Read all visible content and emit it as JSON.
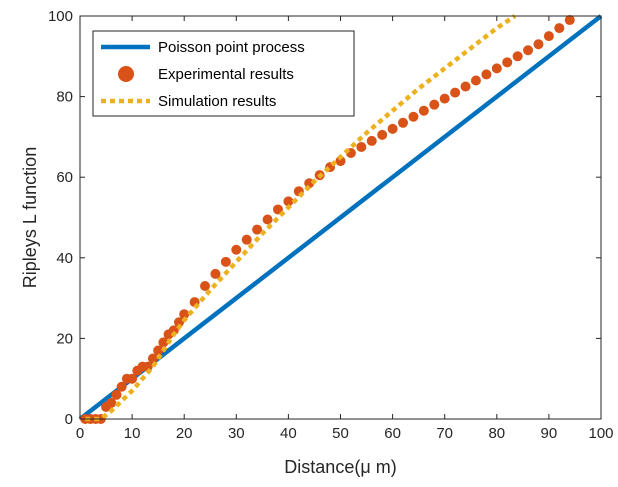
{
  "chart_data": {
    "type": "line",
    "xlabel": "Distance(μ m)",
    "ylabel": "Ripleys L function",
    "xlim": [
      0,
      100
    ],
    "ylim": [
      0,
      100
    ],
    "xticks": [
      0,
      10,
      20,
      30,
      40,
      50,
      60,
      70,
      80,
      90,
      100
    ],
    "yticks": [
      0,
      20,
      40,
      60,
      80,
      100
    ],
    "xtick_labels": [
      "0",
      "10",
      "20",
      "30",
      "40",
      "50",
      "60",
      "70",
      "80",
      "90",
      "100"
    ],
    "ytick_labels": [
      "0",
      "20",
      "40",
      "60",
      "80",
      "100"
    ],
    "grid": false,
    "legend_position": "top-left",
    "series": [
      {
        "name": "Poisson point process",
        "style": "solid-line",
        "color": "#0072BD",
        "x": [
          0,
          100
        ],
        "y": [
          0,
          100
        ]
      },
      {
        "name": "Experimental results",
        "style": "markers",
        "color": "#D95319",
        "x": [
          1,
          2,
          3,
          4,
          5,
          6,
          7,
          8,
          9,
          10,
          11,
          12,
          13,
          14,
          15,
          16,
          17,
          18,
          19,
          20,
          22,
          24,
          26,
          28,
          30,
          32,
          34,
          36,
          38,
          40,
          42,
          44,
          46,
          48,
          50,
          52,
          54,
          56,
          58,
          60,
          62,
          64,
          66,
          68,
          70,
          72,
          74,
          76,
          78,
          80,
          82,
          84,
          86,
          88,
          90,
          92,
          94
        ],
        "y": [
          0,
          0,
          0,
          0,
          3,
          4,
          6,
          8,
          10,
          10,
          12,
          13,
          13,
          15,
          17,
          19,
          21,
          22,
          24,
          26,
          29,
          33,
          36,
          39,
          42,
          44.5,
          47,
          49.5,
          52,
          54,
          56.5,
          58.5,
          60.5,
          62.5,
          64,
          66,
          67.5,
          69,
          70.5,
          72,
          73.5,
          75,
          76.5,
          78,
          79.5,
          81,
          82.5,
          84,
          85.5,
          87,
          88.5,
          90,
          91.5,
          93,
          95,
          97,
          99
        ]
      },
      {
        "name": "Simulation results",
        "style": "dotted-line",
        "color": "#EDB120",
        "x": [
          1,
          4,
          6,
          8,
          10,
          12,
          14,
          16,
          18,
          20,
          25,
          30,
          35,
          40,
          45,
          50,
          55,
          60,
          65,
          70,
          75,
          80,
          83.5
        ],
        "y": [
          0,
          0,
          2,
          4.5,
          7,
          10,
          13,
          17,
          21,
          24.5,
          32,
          39,
          46,
          52.5,
          59,
          65,
          71,
          76.5,
          82,
          87,
          92,
          97,
          100
        ]
      }
    ]
  }
}
